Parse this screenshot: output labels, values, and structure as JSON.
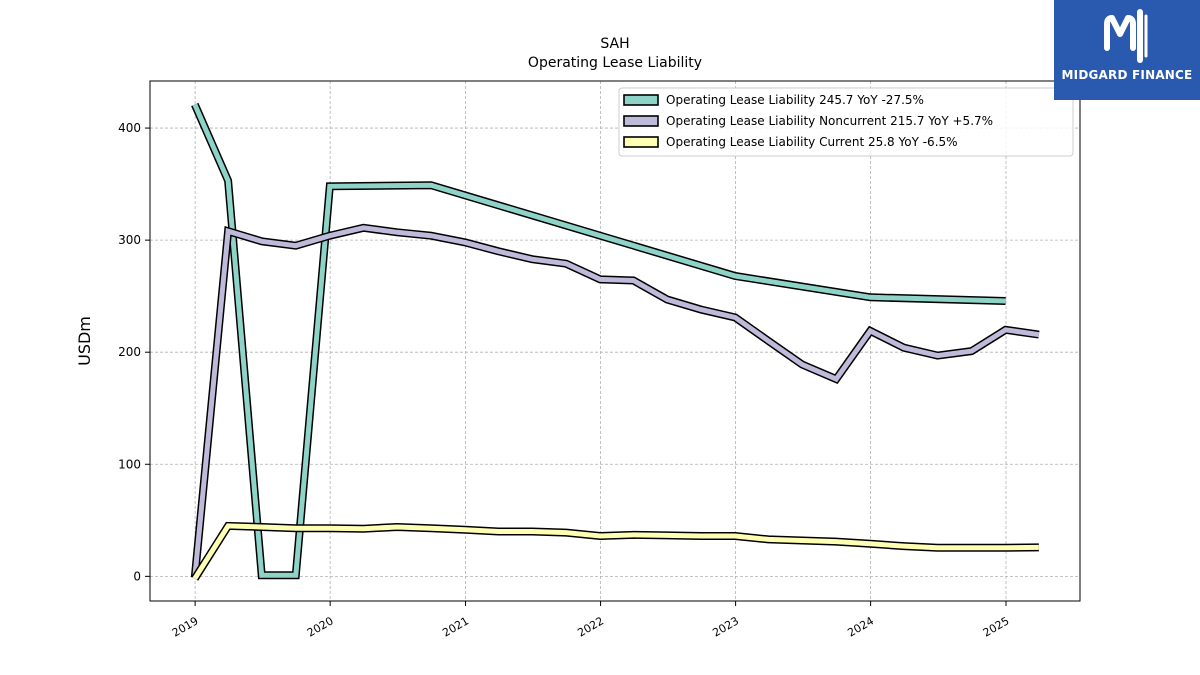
{
  "chart_data": {
    "type": "line",
    "title": "SAH",
    "subtitle": "Operating Lease Liability",
    "xlabel": "",
    "ylabel": "USDm",
    "ylim": [
      -22,
      442
    ],
    "xlim": [
      "2018-09-01",
      "2025-07-20"
    ],
    "yticks": [
      0,
      100,
      200,
      300,
      400
    ],
    "xticks": [
      "2019",
      "2020",
      "2021",
      "2022",
      "2023",
      "2024",
      "2025"
    ],
    "grid": true,
    "legend_position": "top-right",
    "series": [
      {
        "name": "Operating Lease Liability  245.7 YoY -27.5%",
        "color": "#8dd3c7",
        "points": [
          [
            "2018-12-31",
            421
          ],
          [
            "2019-03-31",
            353
          ],
          [
            "2019-06-30",
            1
          ],
          [
            "2019-09-30",
            1
          ],
          [
            "2019-12-31",
            348
          ],
          [
            "2020-09-30",
            349
          ],
          [
            "2022-12-31",
            268
          ],
          [
            "2023-12-31",
            249
          ],
          [
            "2024-12-31",
            245.7
          ]
        ]
      },
      {
        "name": "Operating Lease Liability Noncurrent  215.7 YoY +5.7%",
        "color": "#bebada",
        "points": [
          [
            "2018-12-31",
            -1
          ],
          [
            "2019-03-31",
            308
          ],
          [
            "2019-06-30",
            299
          ],
          [
            "2019-09-30",
            295
          ],
          [
            "2019-12-31",
            304
          ],
          [
            "2020-03-31",
            311
          ],
          [
            "2020-06-30",
            307
          ],
          [
            "2020-09-30",
            304
          ],
          [
            "2020-12-31",
            298
          ],
          [
            "2021-03-31",
            290
          ],
          [
            "2021-06-30",
            283
          ],
          [
            "2021-09-30",
            279
          ],
          [
            "2021-12-31",
            265
          ],
          [
            "2022-03-31",
            264
          ],
          [
            "2022-06-30",
            247
          ],
          [
            "2022-09-30",
            238
          ],
          [
            "2022-12-31",
            231
          ],
          [
            "2023-03-31",
            210
          ],
          [
            "2023-06-30",
            189
          ],
          [
            "2023-09-30",
            176
          ],
          [
            "2023-12-31",
            219
          ],
          [
            "2024-03-31",
            204
          ],
          [
            "2024-06-30",
            197
          ],
          [
            "2024-09-30",
            201
          ],
          [
            "2024-12-31",
            220
          ],
          [
            "2025-03-31",
            215.7
          ]
        ]
      },
      {
        "name": "Operating Lease Liability Current  25.8 YoY -6.5%",
        "color": "#ffffb3",
        "points": [
          [
            "2018-12-31",
            -2
          ],
          [
            "2019-03-31",
            45
          ],
          [
            "2019-06-30",
            44
          ],
          [
            "2019-09-30",
            43
          ],
          [
            "2019-12-31",
            43
          ],
          [
            "2020-03-31",
            42.5
          ],
          [
            "2020-06-30",
            44
          ],
          [
            "2020-09-30",
            43
          ],
          [
            "2020-12-31",
            41.5
          ],
          [
            "2021-03-31",
            40
          ],
          [
            "2021-06-30",
            40
          ],
          [
            "2021-09-30",
            39
          ],
          [
            "2021-12-31",
            36
          ],
          [
            "2022-03-31",
            37
          ],
          [
            "2022-06-30",
            36.5
          ],
          [
            "2022-09-30",
            36
          ],
          [
            "2022-12-31",
            36
          ],
          [
            "2023-03-31",
            33
          ],
          [
            "2023-06-30",
            32
          ],
          [
            "2023-09-30",
            31
          ],
          [
            "2023-12-31",
            29
          ],
          [
            "2024-03-31",
            27
          ],
          [
            "2024-06-30",
            25.5
          ],
          [
            "2024-09-30",
            25.5
          ],
          [
            "2024-12-31",
            25.5
          ],
          [
            "2025-03-31",
            25.8
          ]
        ]
      }
    ]
  },
  "logo": {
    "text": "MIDGARD FINANCE",
    "background": "#2a59b0",
    "icon": "midgard-m-logo-icon"
  }
}
